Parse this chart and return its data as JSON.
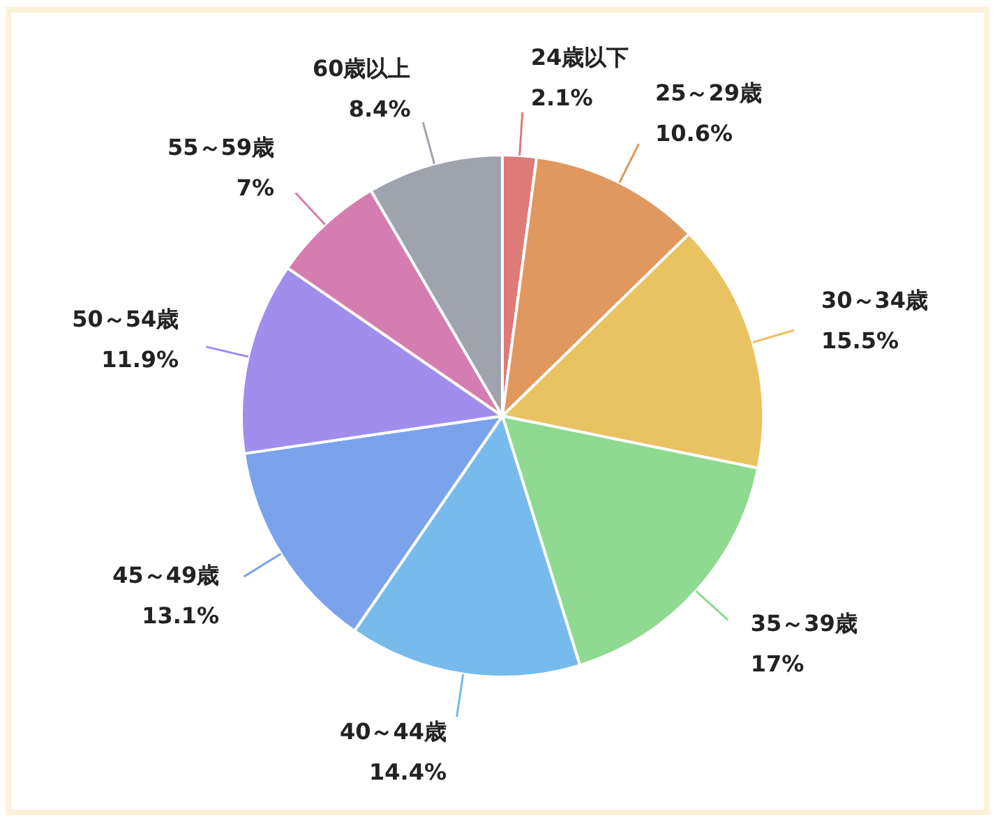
{
  "chart_data": {
    "type": "pie",
    "categories": [
      "24歳以下",
      "25～29歳",
      "30～34歳",
      "35～39歳",
      "40～44歳",
      "45～49歳",
      "50～54歳",
      "55～59歳",
      "60歳以上"
    ],
    "values": [
      2.1,
      10.6,
      15.5,
      17,
      14.4,
      13.1,
      11.9,
      7,
      8.4
    ],
    "colors": [
      "#dc7b78",
      "#e0985e",
      "#e9c261",
      "#90d990",
      "#77bbec",
      "#7aa3ec",
      "#a08dec",
      "#d57cb0",
      "#9ea3ad"
    ],
    "value_labels": [
      "2.1%",
      "10.6%",
      "15.5%",
      "17%",
      "14.4%",
      "13.1%",
      "11.9%",
      "7%",
      "8.4%"
    ]
  }
}
